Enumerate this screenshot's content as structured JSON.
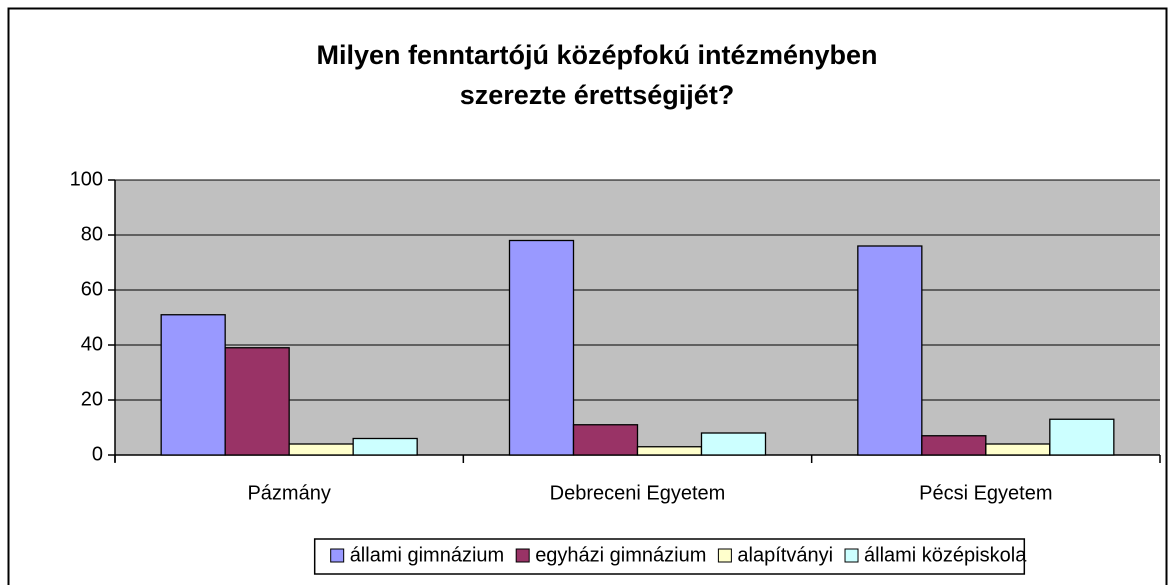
{
  "chart_data": {
    "type": "bar",
    "title": [
      "Milyen fenntartójú középfokú intézményben",
      "szerezte érettségijét?"
    ],
    "categories": [
      "Pázmány",
      "Debreceni Egyetem",
      "Pécsi Egyetem"
    ],
    "series": [
      {
        "name": "állami gimnázium",
        "color": "#9999ff",
        "values": [
          51,
          78,
          76
        ]
      },
      {
        "name": "egyházi gimnázium",
        "color": "#993366",
        "values": [
          39,
          11,
          7
        ]
      },
      {
        "name": "alapítványi",
        "color": "#ffffcc",
        "values": [
          4,
          3,
          4
        ]
      },
      {
        "name": "állami középiskola",
        "color": "#ccffff",
        "values": [
          6,
          8,
          13
        ]
      }
    ],
    "ylim": [
      0,
      100
    ],
    "yticks": [
      0,
      20,
      40,
      60,
      80,
      100
    ],
    "grid": true,
    "plot_background": "#c0c0c0",
    "legend": "bottom"
  }
}
